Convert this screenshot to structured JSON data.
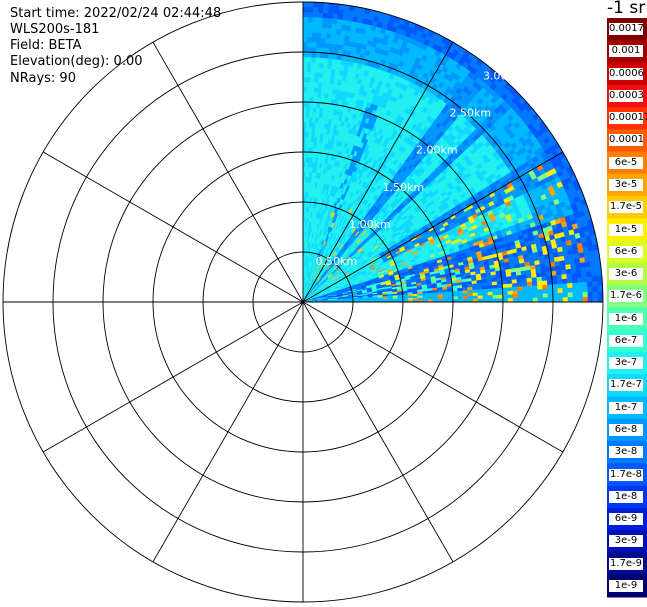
{
  "info": {
    "start_time": "Start time: 2022/02/24 02:44:48",
    "instrument": "WLS200s-181",
    "field": "Field: BETA",
    "elevation": "Elevation(deg): 0.00",
    "nrays": "NRays: 90"
  },
  "chart_data": {
    "type": "heatmap",
    "projection": "polar-ppi",
    "field": "BETA",
    "sector_deg": [
      0,
      90
    ],
    "range_rings_km": [
      0.5,
      1.0,
      1.5,
      2.0,
      2.5,
      3.0
    ],
    "range_labels": [
      "0.50km",
      "1.00km",
      "1.50km",
      "2.00km",
      "2.50km",
      "3.00km"
    ],
    "max_range_km": 3.0,
    "spokes": 12,
    "colorscale": "log",
    "colorbar": {
      "unit": "-1 sr",
      "labels": [
        "0.0017",
        "0.001",
        "0.0006",
        "0.0003",
        "0.00017",
        "0.0001",
        "6e-5",
        "3e-5",
        "1.7e-5",
        "1e-5",
        "6e-6",
        "3e-6",
        "1.7e-6",
        "1e-6",
        "6e-7",
        "3e-7",
        "1.7e-7",
        "1e-7",
        "6e-8",
        "3e-8",
        "1.7e-8",
        "1e-8",
        "6e-9",
        "3e-9",
        "1.7e-9",
        "1e-9"
      ],
      "colors": [
        "#7f0000",
        "#a50000",
        "#cc0000",
        "#ee1010",
        "#ff3000",
        "#ff5a00",
        "#ff8000",
        "#ffa500",
        "#ffcc00",
        "#ffee00",
        "#d8ff20",
        "#b0ff40",
        "#80ff80",
        "#50ffb0",
        "#30ffd8",
        "#20f0f0",
        "#10d8ff",
        "#00b8ff",
        "#0098ff",
        "#0078ff",
        "#0058ff",
        "#0038f0",
        "#0020d8",
        "#0010b8",
        "#000c90",
        "#000070"
      ]
    }
  }
}
